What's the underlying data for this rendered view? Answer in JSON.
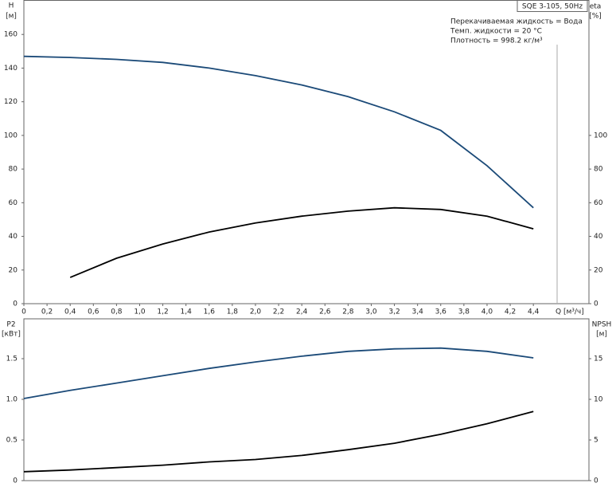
{
  "chart_data": [
    {
      "type": "line",
      "title": "SQE 3-105, 50Hz",
      "notes": [
        "Перекачиваемая жидкость = Вода",
        "Темп. жидкости = 20 °C",
        "Плотность = 998.2 кг/м³"
      ],
      "ylabel": "H",
      "yunit": "[м]",
      "y2label": "eta",
      "y2unit": "[%]",
      "xlabel": "Q [м³/ч]",
      "x": [
        0,
        0.4,
        0.8,
        1.2,
        1.6,
        2.0,
        2.4,
        2.8,
        3.2,
        3.6,
        4.0,
        4.4
      ],
      "xlim": [
        0,
        4.88
      ],
      "xticks": [
        0,
        {
          "value": 0.2,
          "label": "0,2"
        },
        {
          "value": 0.4,
          "label": "0,4"
        },
        {
          "value": 0.6,
          "label": "0,6"
        },
        {
          "value": 0.8,
          "label": "0,8"
        },
        {
          "value": 1,
          "label": "1,0"
        },
        {
          "value": 1.2,
          "label": "1,2"
        },
        {
          "value": 1.4,
          "label": "1,4"
        },
        {
          "value": 1.6,
          "label": "1,6"
        },
        {
          "value": 1.8,
          "label": "1,8"
        },
        {
          "value": 2,
          "label": "2,0"
        },
        {
          "value": 2.2,
          "label": "2,2"
        },
        {
          "value": 2.4,
          "label": "2,4"
        },
        {
          "value": 2.6,
          "label": "2,6"
        },
        {
          "value": 2.8,
          "label": "2,8"
        },
        {
          "value": 3,
          "label": "3,0"
        },
        {
          "value": 3.2,
          "label": "3,2"
        },
        {
          "value": 3.4,
          "label": "3,4"
        },
        {
          "value": 3.6,
          "label": "3,6"
        },
        {
          "value": 3.8,
          "label": "3,8"
        },
        {
          "value": 4,
          "label": "4,0"
        },
        {
          "value": 4.2,
          "label": "4,2"
        },
        {
          "value": 4.4,
          "label": "4,4"
        }
      ],
      "ylim": [
        0,
        180
      ],
      "yticks": [
        0,
        20,
        40,
        60,
        80,
        100,
        120,
        140,
        160
      ],
      "y2lim": [
        0,
        180
      ],
      "y2ticks": [
        0,
        20,
        40,
        60,
        80,
        100
      ],
      "series": [
        {
          "name": "H",
          "color": "#1b4a78",
          "values": [
            147,
            146.3,
            145.2,
            143.4,
            140,
            135.5,
            130,
            123,
            114,
            103,
            82,
            57
          ]
        },
        {
          "name": "eta",
          "color": "#000000",
          "axis": "y2",
          "values": [
            null,
            15.6,
            27,
            35.5,
            42.6,
            48,
            52,
            55,
            57,
            56,
            52,
            44.5
          ]
        }
      ]
    },
    {
      "type": "line",
      "ylabel": "P2",
      "yunit": "[кВт]",
      "y2label": "NPSH",
      "y2unit": "[м]",
      "x": [
        0,
        0.4,
        0.8,
        1.2,
        1.6,
        2.0,
        2.4,
        2.8,
        3.2,
        3.6,
        4.0,
        4.4
      ],
      "xlim": [
        0,
        4.88
      ],
      "ylim": [
        0,
        1.99
      ],
      "yticks": [
        0,
        0.5,
        {
          "value": 1,
          "label": "1.0"
        },
        1.5
      ],
      "y2lim": [
        0,
        19.9
      ],
      "y2ticks": [
        0,
        5,
        10,
        15
      ],
      "series": [
        {
          "name": "P2",
          "color": "#1b4a78",
          "values": [
            1.01,
            1.11,
            1.2,
            1.29,
            1.38,
            1.46,
            1.53,
            1.59,
            1.62,
            1.63,
            1.59,
            1.51
          ]
        },
        {
          "name": "NPSH",
          "color": "#000000",
          "axis": "y2",
          "values": [
            1.1,
            1.3,
            1.6,
            1.9,
            2.3,
            2.6,
            3.1,
            3.8,
            4.6,
            5.7,
            7.0,
            8.5
          ]
        }
      ]
    }
  ]
}
